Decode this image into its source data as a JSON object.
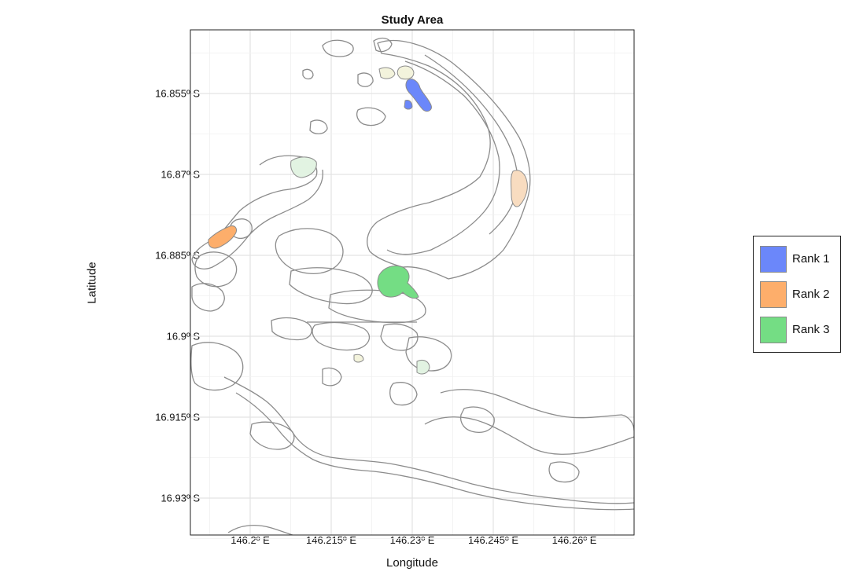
{
  "map": {
    "title": "Study Area",
    "xlabel": "Longitude",
    "ylabel": "Latitude",
    "x_ticks": [
      {
        "value": 146.2,
        "label": "146.2º E"
      },
      {
        "value": 146.215,
        "label": "146.215º E"
      },
      {
        "value": 146.23,
        "label": "146.23º E"
      },
      {
        "value": 146.245,
        "label": "146.245º E"
      },
      {
        "value": 146.26,
        "label": "146.26º E"
      }
    ],
    "y_ticks": [
      {
        "value": -16.855,
        "label": "16.855º S"
      },
      {
        "value": -16.87,
        "label": "16.87º S"
      },
      {
        "value": -16.885,
        "label": "16.885º S"
      },
      {
        "value": -16.9,
        "label": "16.9º S"
      },
      {
        "value": -16.915,
        "label": "16.915º S"
      },
      {
        "value": -16.93,
        "label": "16.93º S"
      }
    ],
    "grid": true,
    "legend_position": "right"
  },
  "legend": {
    "items": [
      {
        "label": "Rank 1",
        "color": "#6b87fa"
      },
      {
        "label": "Rank 2",
        "color": "#fdae6b"
      },
      {
        "label": "Rank 3",
        "color": "#74dd84"
      }
    ]
  },
  "colors": {
    "outline": "#8c8c8c",
    "grid": "#e3e3e3",
    "rank1": "#6b87fa",
    "rank2": "#fdae6b",
    "rank3": "#74dd84",
    "rank1_light": "#bcc8f6",
    "rank2_light": "#f8dcc0",
    "rank3_light": "#e2f3e2",
    "pale": "#f3f3dc"
  }
}
